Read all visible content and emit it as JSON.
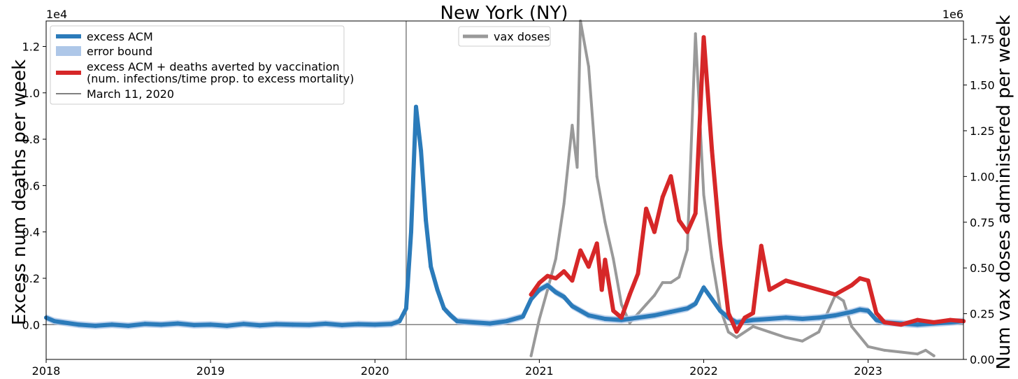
{
  "chart_data": {
    "type": "line",
    "title": "New York (NY)",
    "ylabel": "Excess num deaths per week",
    "ylabel_right": "Num vax doses administered per week",
    "y_exponent_label": "1e4",
    "y2_exponent_label": "1e6",
    "xlim": [
      2018.0,
      2023.58
    ],
    "ylim": [
      -1500,
      13100
    ],
    "y2lim": [
      0,
      1.85
    ],
    "x_ticks": [
      2018,
      2019,
      2020,
      2021,
      2022,
      2023
    ],
    "x_tick_labels": [
      "2018",
      "2019",
      "2020",
      "2021",
      "2022",
      "2023"
    ],
    "y_ticks": [
      0,
      2000,
      4000,
      6000,
      8000,
      10000,
      12000
    ],
    "y_tick_labels": [
      "0.0",
      "0.2",
      "0.4",
      "0.6",
      "0.8",
      "1.0",
      "1.2"
    ],
    "y2_ticks": [
      0,
      0.25,
      0.5,
      0.75,
      1.0,
      1.25,
      1.5,
      1.75
    ],
    "y2_tick_labels": [
      "0.00",
      "0.25",
      "0.50",
      "0.75",
      "1.00",
      "1.25",
      "1.50",
      "1.75"
    ],
    "vline": {
      "x": 2020.19,
      "label": "March 11, 2020"
    },
    "hline": {
      "y": 0
    },
    "legend_main": {
      "placement": "top-left",
      "entries": [
        {
          "label": "excess ACM",
          "color": "#2b7bba"
        },
        {
          "label": "error bound",
          "color": "#aec7e8"
        },
        {
          "label": "excess ACM + deaths averted by vaccination",
          "label2": "(num. infections/time prop. to excess mortality)",
          "color": "#d62728"
        },
        {
          "label": "March 11, 2020",
          "color": "#808080"
        }
      ]
    },
    "legend_secondary": {
      "placement": "top-center",
      "entries": [
        {
          "label": "vax doses",
          "color": "#999999"
        }
      ]
    },
    "series": [
      {
        "name": "excess ACM",
        "axis": "left",
        "color": "#2b7bba",
        "points": [
          [
            2018.0,
            300
          ],
          [
            2018.05,
            150
          ],
          [
            2018.1,
            100
          ],
          [
            2018.2,
            0
          ],
          [
            2018.3,
            -50
          ],
          [
            2018.4,
            0
          ],
          [
            2018.5,
            -50
          ],
          [
            2018.6,
            30
          ],
          [
            2018.7,
            0
          ],
          [
            2018.8,
            50
          ],
          [
            2018.9,
            -20
          ],
          [
            2019.0,
            0
          ],
          [
            2019.1,
            -50
          ],
          [
            2019.2,
            30
          ],
          [
            2019.3,
            -30
          ],
          [
            2019.4,
            20
          ],
          [
            2019.5,
            0
          ],
          [
            2019.6,
            -10
          ],
          [
            2019.7,
            40
          ],
          [
            2019.8,
            -20
          ],
          [
            2019.9,
            20
          ],
          [
            2020.0,
            0
          ],
          [
            2020.1,
            30
          ],
          [
            2020.15,
            150
          ],
          [
            2020.19,
            700
          ],
          [
            2020.22,
            4000
          ],
          [
            2020.25,
            9400
          ],
          [
            2020.28,
            7500
          ],
          [
            2020.31,
            4500
          ],
          [
            2020.34,
            2500
          ],
          [
            2020.38,
            1500
          ],
          [
            2020.42,
            700
          ],
          [
            2020.46,
            400
          ],
          [
            2020.5,
            150
          ],
          [
            2020.6,
            100
          ],
          [
            2020.7,
            50
          ],
          [
            2020.8,
            150
          ],
          [
            2020.9,
            350
          ],
          [
            2020.95,
            1100
          ],
          [
            2021.0,
            1500
          ],
          [
            2021.05,
            1700
          ],
          [
            2021.1,
            1400
          ],
          [
            2021.15,
            1200
          ],
          [
            2021.2,
            800
          ],
          [
            2021.3,
            400
          ],
          [
            2021.4,
            250
          ],
          [
            2021.5,
            200
          ],
          [
            2021.6,
            300
          ],
          [
            2021.7,
            400
          ],
          [
            2021.8,
            550
          ],
          [
            2021.9,
            700
          ],
          [
            2021.95,
            900
          ],
          [
            2022.0,
            1600
          ],
          [
            2022.05,
            1100
          ],
          [
            2022.1,
            600
          ],
          [
            2022.15,
            300
          ],
          [
            2022.2,
            100
          ],
          [
            2022.3,
            200
          ],
          [
            2022.4,
            250
          ],
          [
            2022.5,
            300
          ],
          [
            2022.6,
            250
          ],
          [
            2022.7,
            300
          ],
          [
            2022.8,
            400
          ],
          [
            2022.9,
            550
          ],
          [
            2022.95,
            650
          ],
          [
            2023.0,
            600
          ],
          [
            2023.05,
            200
          ],
          [
            2023.1,
            100
          ],
          [
            2023.2,
            50
          ],
          [
            2023.3,
            0
          ],
          [
            2023.4,
            50
          ],
          [
            2023.5,
            100
          ],
          [
            2023.58,
            150
          ]
        ]
      },
      {
        "name": "excess ACM + deaths averted by vaccination",
        "axis": "left",
        "color": "#d62728",
        "points": [
          [
            2020.95,
            1300
          ],
          [
            2021.0,
            1800
          ],
          [
            2021.05,
            2100
          ],
          [
            2021.1,
            2000
          ],
          [
            2021.15,
            2300
          ],
          [
            2021.2,
            1900
          ],
          [
            2021.25,
            3200
          ],
          [
            2021.3,
            2500
          ],
          [
            2021.35,
            3500
          ],
          [
            2021.38,
            1500
          ],
          [
            2021.4,
            2800
          ],
          [
            2021.45,
            600
          ],
          [
            2021.5,
            300
          ],
          [
            2021.55,
            1300
          ],
          [
            2021.6,
            2200
          ],
          [
            2021.65,
            5000
          ],
          [
            2021.7,
            4000
          ],
          [
            2021.75,
            5500
          ],
          [
            2021.8,
            6400
          ],
          [
            2021.85,
            4500
          ],
          [
            2021.9,
            4000
          ],
          [
            2021.95,
            4800
          ],
          [
            2022.0,
            12400
          ],
          [
            2022.05,
            7500
          ],
          [
            2022.1,
            3500
          ],
          [
            2022.15,
            500
          ],
          [
            2022.2,
            -300
          ],
          [
            2022.25,
            300
          ],
          [
            2022.3,
            500
          ],
          [
            2022.35,
            3400
          ],
          [
            2022.4,
            1500
          ],
          [
            2022.5,
            1900
          ],
          [
            2022.6,
            1700
          ],
          [
            2022.7,
            1500
          ],
          [
            2022.8,
            1300
          ],
          [
            2022.9,
            1700
          ],
          [
            2022.95,
            2000
          ],
          [
            2023.0,
            1900
          ],
          [
            2023.05,
            500
          ],
          [
            2023.1,
            100
          ],
          [
            2023.2,
            0
          ],
          [
            2023.3,
            200
          ],
          [
            2023.4,
            100
          ],
          [
            2023.5,
            200
          ],
          [
            2023.58,
            150
          ]
        ]
      },
      {
        "name": "vax doses",
        "axis": "right",
        "color": "#999999",
        "points": [
          [
            2020.95,
            0.02
          ],
          [
            2021.0,
            0.22
          ],
          [
            2021.05,
            0.38
          ],
          [
            2021.1,
            0.55
          ],
          [
            2021.15,
            0.85
          ],
          [
            2021.2,
            1.28
          ],
          [
            2021.23,
            1.05
          ],
          [
            2021.25,
            1.85
          ],
          [
            2021.3,
            1.6
          ],
          [
            2021.35,
            1.0
          ],
          [
            2021.4,
            0.75
          ],
          [
            2021.45,
            0.55
          ],
          [
            2021.5,
            0.3
          ],
          [
            2021.55,
            0.2
          ],
          [
            2021.6,
            0.25
          ],
          [
            2021.65,
            0.3
          ],
          [
            2021.7,
            0.35
          ],
          [
            2021.75,
            0.42
          ],
          [
            2021.8,
            0.42
          ],
          [
            2021.85,
            0.45
          ],
          [
            2021.9,
            0.6
          ],
          [
            2021.95,
            1.78
          ],
          [
            2022.0,
            0.9
          ],
          [
            2022.05,
            0.55
          ],
          [
            2022.1,
            0.28
          ],
          [
            2022.15,
            0.15
          ],
          [
            2022.2,
            0.12
          ],
          [
            2022.3,
            0.18
          ],
          [
            2022.4,
            0.15
          ],
          [
            2022.5,
            0.12
          ],
          [
            2022.6,
            0.1
          ],
          [
            2022.7,
            0.15
          ],
          [
            2022.8,
            0.35
          ],
          [
            2022.85,
            0.32
          ],
          [
            2022.9,
            0.18
          ],
          [
            2023.0,
            0.07
          ],
          [
            2023.1,
            0.05
          ],
          [
            2023.2,
            0.04
          ],
          [
            2023.3,
            0.03
          ],
          [
            2023.35,
            0.05
          ],
          [
            2023.4,
            0.02
          ]
        ]
      }
    ]
  }
}
